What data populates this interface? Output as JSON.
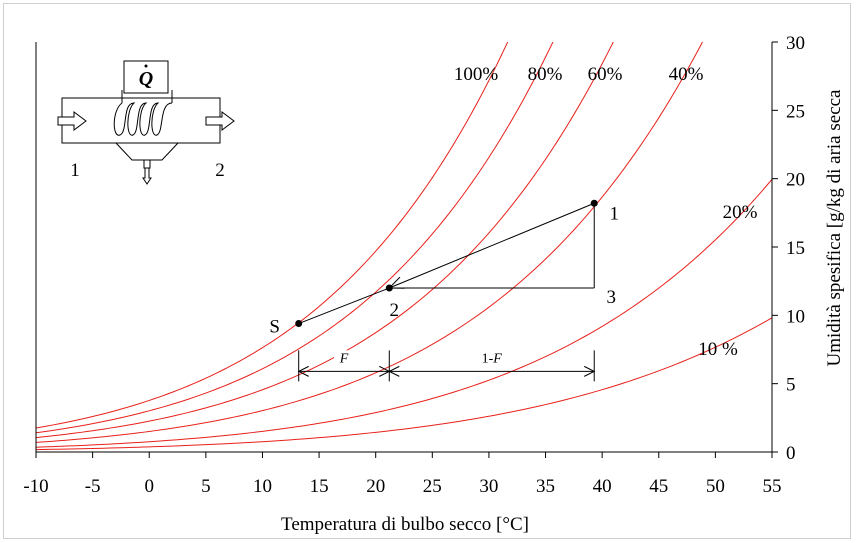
{
  "chart_data": {
    "type": "line",
    "title": "",
    "xlabel": "Temperatura di bulbo secco [°C]",
    "ylabel": "Umidità spesifica [g/kg di aria secca",
    "xlim": [
      -10,
      55
    ],
    "ylim": [
      0,
      30
    ],
    "xticks": [
      -10,
      -5,
      0,
      5,
      10,
      15,
      20,
      25,
      30,
      35,
      40,
      45,
      50,
      55
    ],
    "yticks": [
      0,
      5,
      10,
      15,
      20,
      25,
      30
    ],
    "yaxis_position": "right",
    "grid": false,
    "curve_color": "#e8201a",
    "pressure_kpa": 101.325,
    "series": [
      {
        "name": "100%",
        "rh": 1.0
      },
      {
        "name": "80%",
        "rh": 0.8
      },
      {
        "name": "60%",
        "rh": 0.6
      },
      {
        "name": "40%",
        "rh": 0.4
      },
      {
        "name": "20%",
        "rh": 0.2
      },
      {
        "name": "10 %",
        "rh": 0.1
      }
    ],
    "process_points": [
      {
        "label": "1",
        "x": 39.3,
        "y": 18.2
      },
      {
        "label": "2",
        "x": 21.2,
        "y": 12.0
      },
      {
        "label": "3",
        "x": 39.3,
        "y": 12.0
      },
      {
        "label": "S",
        "x": 13.2,
        "y": 9.4
      }
    ],
    "fraction_labels": {
      "left": "F",
      "right_prefix": "1-",
      "right_var": "F"
    },
    "fraction_y": 5.9
  },
  "schematic": {
    "heat_symbol": "Q",
    "inlet_label": "1",
    "outlet_label": "2",
    "icons": [
      "inlet-arrow-icon",
      "outlet-arrow-icon",
      "heating-coil-icon",
      "drain-icon"
    ]
  }
}
